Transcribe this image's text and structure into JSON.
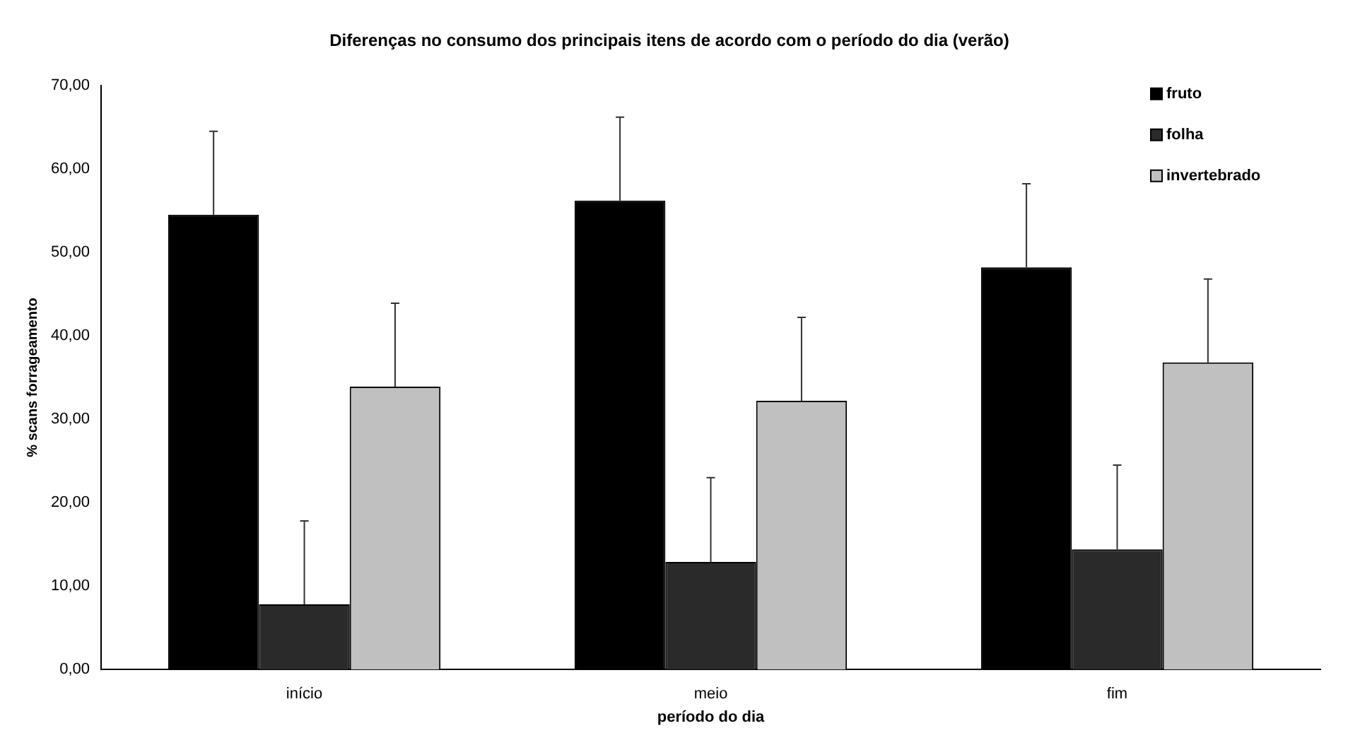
{
  "chart_data": {
    "type": "bar",
    "title": "Diferenças no consumo dos principais itens de acordo com o período do dia (verão)",
    "xlabel": "período do dia",
    "ylabel": "% scans forrageamento",
    "categories": [
      "início",
      "meio",
      "fim"
    ],
    "series": [
      {
        "name": "fruto",
        "color": "#000000",
        "values": [
          54.5,
          56.2,
          48.2
        ],
        "errors": [
          [
            54.5,
            64.5
          ],
          [
            56.2,
            66.2
          ],
          [
            48.2,
            58.2
          ]
        ]
      },
      {
        "name": "folha",
        "color": "#2a2a2a",
        "values": [
          7.8,
          12.9,
          14.4
        ],
        "errors": [
          [
            7.8,
            17.8
          ],
          [
            12.9,
            23.0
          ],
          [
            14.4,
            24.5
          ]
        ]
      },
      {
        "name": "invertebrado",
        "color": "#c0c0c0",
        "values": [
          33.9,
          32.2,
          36.8
        ],
        "errors": [
          [
            33.9,
            43.9
          ],
          [
            32.2,
            42.2
          ],
          [
            36.8,
            46.8
          ]
        ]
      }
    ],
    "ylim": [
      0,
      70
    ],
    "yticks": [
      {
        "value": 0,
        "label": "0,00"
      },
      {
        "value": 10,
        "label": "10,00"
      },
      {
        "value": 20,
        "label": "20,00"
      },
      {
        "value": 30,
        "label": "30,00"
      },
      {
        "value": 40,
        "label": "40,00"
      },
      {
        "value": 50,
        "label": "50,00"
      },
      {
        "value": 60,
        "label": "60,00"
      },
      {
        "value": 70,
        "label": "70,00"
      }
    ],
    "grid": false,
    "legend": "top right"
  }
}
